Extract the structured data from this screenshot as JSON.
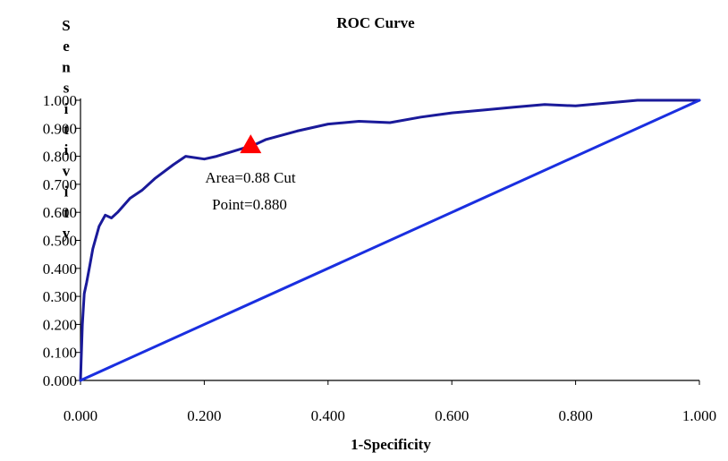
{
  "chart_data": {
    "type": "line",
    "title": "ROC Curve",
    "xlabel": "1-Specificity",
    "ylabel": "Sensitivity",
    "xlim": [
      0,
      1
    ],
    "ylim": [
      0,
      1
    ],
    "x_ticks": [
      "0.000",
      "0.200",
      "0.400",
      "0.600",
      "0.800",
      "1.000"
    ],
    "y_ticks": [
      "0.000",
      "0.100",
      "0.200",
      "0.300",
      "0.400",
      "0.500",
      "0.600",
      "0.700",
      "0.800",
      "0.900",
      "1.000"
    ],
    "grid": false,
    "legend": "none",
    "series": [
      {
        "x": [
          0.0,
          0.003,
          0.006,
          0.01,
          0.015,
          0.02,
          0.03,
          0.04,
          0.05,
          0.06,
          0.08,
          0.1,
          0.12,
          0.15,
          0.17,
          0.2,
          0.22,
          0.25,
          0.28,
          0.3,
          0.35,
          0.4,
          0.45,
          0.5,
          0.55,
          0.6,
          0.65,
          0.7,
          0.75,
          0.8,
          0.85,
          0.9,
          0.95,
          1.0
        ],
        "y": [
          0.0,
          0.2,
          0.31,
          0.35,
          0.41,
          0.47,
          0.55,
          0.59,
          0.58,
          0.6,
          0.65,
          0.68,
          0.72,
          0.77,
          0.8,
          0.79,
          0.8,
          0.82,
          0.84,
          0.86,
          0.89,
          0.915,
          0.925,
          0.92,
          0.94,
          0.955,
          0.965,
          0.975,
          0.985,
          0.98,
          0.99,
          1.0,
          1.0,
          1.0
        ],
        "color": "#1a1a9a"
      },
      {
        "x": [
          0,
          1
        ],
        "y": [
          0,
          1
        ],
        "color": "#1a2fe0"
      }
    ],
    "marker": {
      "x": 0.275,
      "y": 0.84,
      "shape": "triangle",
      "color": "#ff0000"
    },
    "annotation": [
      "Area=0.88  Cut",
      "Point=0.880"
    ]
  }
}
